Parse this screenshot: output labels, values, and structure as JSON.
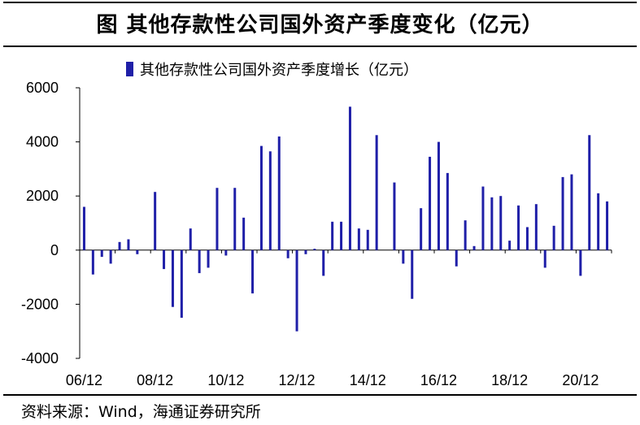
{
  "chart_data": {
    "type": "bar",
    "title": "图  其他存款性公司国外资产季度变化（亿元）",
    "series": [
      {
        "name": "其他存款性公司国外资产季度增长（亿元）",
        "color": "#1f1fa8",
        "values": [
          1600,
          -900,
          -250,
          -500,
          300,
          400,
          -150,
          0,
          2150,
          -700,
          -2100,
          -2500,
          800,
          -850,
          -650,
          2300,
          -200,
          2300,
          1200,
          -1600,
          3850,
          3650,
          4200,
          -300,
          -3000,
          -150,
          50,
          -950,
          1050,
          1050,
          5300,
          800,
          750,
          4250,
          0,
          2500,
          -500,
          -1800,
          1550,
          3450,
          4000,
          2850,
          -600,
          1100,
          150,
          2350,
          1950,
          2000,
          350,
          1650,
          850,
          1700,
          -650,
          900,
          2700,
          2800,
          -950,
          4250,
          2100,
          1800
        ]
      }
    ],
    "xlabels": [
      "06/12",
      "08/12",
      "10/12",
      "12/12",
      "14/12",
      "16/12",
      "18/12",
      "20/12"
    ],
    "yticks": [
      -4000,
      -2000,
      0,
      2000,
      4000,
      6000
    ],
    "ylim": [
      -4000,
      6000
    ],
    "xlabel": "",
    "ylabel": "",
    "grid": false,
    "legend_position": "top"
  },
  "source": "资料来源：Wind，海通证券研究所"
}
